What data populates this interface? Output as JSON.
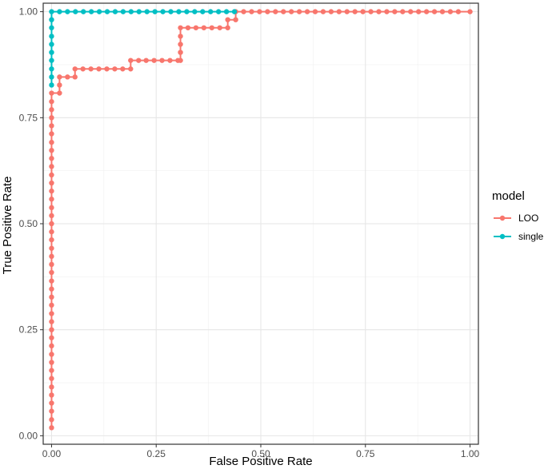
{
  "chart_data": {
    "type": "line",
    "title": "",
    "xlabel": "False Positive Rate",
    "ylabel": "True Positive Rate",
    "xlim": [
      -0.02,
      1.02
    ],
    "ylim": [
      -0.02,
      1.02
    ],
    "x_ticks": [
      "0.00",
      "0.25",
      "0.50",
      "0.75",
      "1.00"
    ],
    "y_ticks": [
      "0.00",
      "0.25",
      "0.50",
      "0.75",
      "1.00"
    ],
    "grid": true,
    "legend": {
      "title": "model",
      "position": "right"
    },
    "colors": {
      "LOO": "#F8766D",
      "single": "#00BFC4"
    },
    "series": [
      {
        "name": "LOO",
        "points": [
          [
            0.0,
            0.019
          ],
          [
            0.0,
            0.038
          ],
          [
            0.0,
            0.058
          ],
          [
            0.0,
            0.077
          ],
          [
            0.0,
            0.096
          ],
          [
            0.0,
            0.115
          ],
          [
            0.0,
            0.135
          ],
          [
            0.0,
            0.154
          ],
          [
            0.0,
            0.173
          ],
          [
            0.0,
            0.192
          ],
          [
            0.0,
            0.212
          ],
          [
            0.0,
            0.231
          ],
          [
            0.0,
            0.25
          ],
          [
            0.0,
            0.269
          ],
          [
            0.0,
            0.288
          ],
          [
            0.0,
            0.308
          ],
          [
            0.0,
            0.327
          ],
          [
            0.0,
            0.346
          ],
          [
            0.0,
            0.365
          ],
          [
            0.0,
            0.385
          ],
          [
            0.0,
            0.404
          ],
          [
            0.0,
            0.423
          ],
          [
            0.0,
            0.442
          ],
          [
            0.0,
            0.462
          ],
          [
            0.0,
            0.481
          ],
          [
            0.0,
            0.5
          ],
          [
            0.0,
            0.519
          ],
          [
            0.0,
            0.538
          ],
          [
            0.0,
            0.558
          ],
          [
            0.0,
            0.577
          ],
          [
            0.0,
            0.596
          ],
          [
            0.0,
            0.615
          ],
          [
            0.0,
            0.635
          ],
          [
            0.0,
            0.654
          ],
          [
            0.0,
            0.673
          ],
          [
            0.0,
            0.692
          ],
          [
            0.0,
            0.712
          ],
          [
            0.0,
            0.731
          ],
          [
            0.0,
            0.75
          ],
          [
            0.0,
            0.769
          ],
          [
            0.0,
            0.788
          ],
          [
            0.0,
            0.808
          ],
          [
            0.019,
            0.808
          ],
          [
            0.019,
            0.827
          ],
          [
            0.019,
            0.846
          ],
          [
            0.038,
            0.846
          ],
          [
            0.056,
            0.846
          ],
          [
            0.056,
            0.865
          ],
          [
            0.075,
            0.865
          ],
          [
            0.094,
            0.865
          ],
          [
            0.113,
            0.865
          ],
          [
            0.132,
            0.865
          ],
          [
            0.151,
            0.865
          ],
          [
            0.17,
            0.865
          ],
          [
            0.189,
            0.865
          ],
          [
            0.189,
            0.885
          ],
          [
            0.208,
            0.885
          ],
          [
            0.226,
            0.885
          ],
          [
            0.245,
            0.885
          ],
          [
            0.264,
            0.885
          ],
          [
            0.283,
            0.885
          ],
          [
            0.302,
            0.885
          ],
          [
            0.308,
            0.885
          ],
          [
            0.308,
            0.904
          ],
          [
            0.308,
            0.923
          ],
          [
            0.308,
            0.942
          ],
          [
            0.308,
            0.962
          ],
          [
            0.326,
            0.962
          ],
          [
            0.345,
            0.962
          ],
          [
            0.364,
            0.962
          ],
          [
            0.383,
            0.962
          ],
          [
            0.402,
            0.962
          ],
          [
            0.421,
            0.962
          ],
          [
            0.421,
            0.981
          ],
          [
            0.44,
            0.981
          ],
          [
            0.44,
            1.0
          ],
          [
            0.459,
            1.0
          ],
          [
            0.478,
            1.0
          ],
          [
            0.497,
            1.0
          ],
          [
            0.516,
            1.0
          ],
          [
            0.535,
            1.0
          ],
          [
            0.554,
            1.0
          ],
          [
            0.573,
            1.0
          ],
          [
            0.592,
            1.0
          ],
          [
            0.611,
            1.0
          ],
          [
            0.63,
            1.0
          ],
          [
            0.649,
            1.0
          ],
          [
            0.668,
            1.0
          ],
          [
            0.687,
            1.0
          ],
          [
            0.706,
            1.0
          ],
          [
            0.725,
            1.0
          ],
          [
            0.744,
            1.0
          ],
          [
            0.763,
            1.0
          ],
          [
            0.782,
            1.0
          ],
          [
            0.801,
            1.0
          ],
          [
            0.82,
            1.0
          ],
          [
            0.839,
            1.0
          ],
          [
            0.858,
            1.0
          ],
          [
            0.877,
            1.0
          ],
          [
            0.896,
            1.0
          ],
          [
            0.915,
            1.0
          ],
          [
            0.934,
            1.0
          ],
          [
            0.953,
            1.0
          ],
          [
            0.972,
            1.0
          ],
          [
            1.0,
            1.0
          ]
        ]
      },
      {
        "name": "single",
        "points": [
          [
            0.0,
            0.827
          ],
          [
            0.0,
            0.846
          ],
          [
            0.0,
            0.865
          ],
          [
            0.0,
            0.885
          ],
          [
            0.0,
            0.904
          ],
          [
            0.0,
            0.923
          ],
          [
            0.0,
            0.942
          ],
          [
            0.0,
            0.962
          ],
          [
            0.0,
            0.981
          ],
          [
            0.0,
            1.0
          ],
          [
            0.019,
            1.0
          ],
          [
            0.038,
            1.0
          ],
          [
            0.057,
            1.0
          ],
          [
            0.076,
            1.0
          ],
          [
            0.095,
            1.0
          ],
          [
            0.114,
            1.0
          ],
          [
            0.133,
            1.0
          ],
          [
            0.152,
            1.0
          ],
          [
            0.171,
            1.0
          ],
          [
            0.19,
            1.0
          ],
          [
            0.209,
            1.0
          ],
          [
            0.228,
            1.0
          ],
          [
            0.247,
            1.0
          ],
          [
            0.266,
            1.0
          ],
          [
            0.285,
            1.0
          ],
          [
            0.304,
            1.0
          ],
          [
            0.323,
            1.0
          ],
          [
            0.342,
            1.0
          ],
          [
            0.361,
            1.0
          ],
          [
            0.38,
            1.0
          ],
          [
            0.399,
            1.0
          ],
          [
            0.418,
            1.0
          ],
          [
            0.437,
            1.0
          ]
        ]
      }
    ]
  }
}
